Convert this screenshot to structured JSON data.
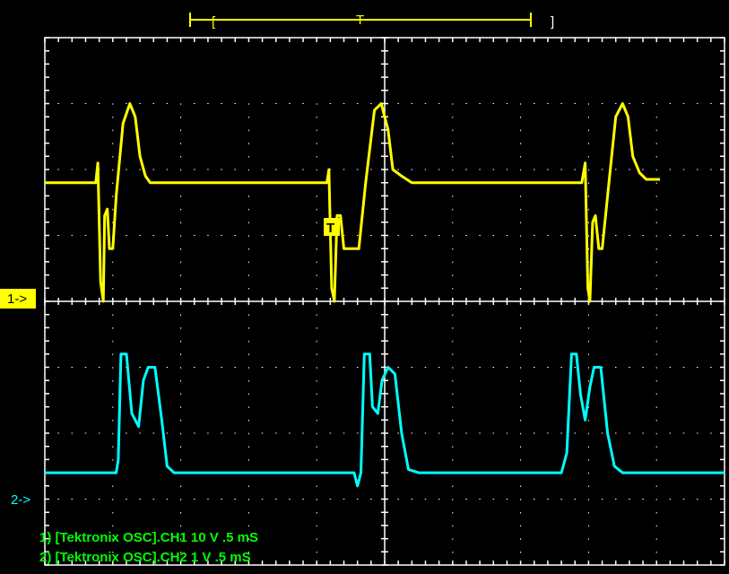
{
  "colors": {
    "background": "#000000",
    "grid": "#ffffff",
    "ch1": "#ffff00",
    "ch2": "#00ffff",
    "readout": "#00ff00",
    "trigger_bracket": "#ffff00"
  },
  "markers": {
    "ch1_label": "1->",
    "ch2_label": "2->",
    "trigger_flag": "T",
    "trigger_bracket_label": "T"
  },
  "readouts": [
    "1) [Tektronix OSC].CH1  10  V  .5 mS",
    "2) [Tektronix OSC].CH2  1  V  .5 mS"
  ],
  "chart_data": {
    "type": "line",
    "title": "",
    "grid": true,
    "x_divisions": 10,
    "y_divisions": 8,
    "x_unit_per_div": ".5 mS",
    "series": [
      {
        "name": "CH1",
        "volts_per_div": "10 V",
        "points_div": [
          [
            0,
            5.8
          ],
          [
            0.75,
            5.8
          ],
          [
            0.78,
            6.1
          ],
          [
            0.82,
            4.3
          ],
          [
            0.86,
            4.0
          ],
          [
            0.88,
            5.3
          ],
          [
            0.92,
            5.4
          ],
          [
            0.95,
            4.8
          ],
          [
            1.0,
            4.8
          ],
          [
            1.05,
            5.6
          ],
          [
            1.15,
            6.7
          ],
          [
            1.25,
            7.0
          ],
          [
            1.33,
            6.8
          ],
          [
            1.4,
            6.2
          ],
          [
            1.48,
            5.9
          ],
          [
            1.55,
            5.8
          ],
          [
            4.15,
            5.8
          ],
          [
            4.18,
            6.0
          ],
          [
            4.22,
            4.2
          ],
          [
            4.26,
            4.0
          ],
          [
            4.3,
            5.3
          ],
          [
            4.35,
            5.3
          ],
          [
            4.4,
            4.8
          ],
          [
            4.62,
            4.8
          ],
          [
            4.72,
            5.8
          ],
          [
            4.85,
            6.9
          ],
          [
            4.95,
            7.0
          ],
          [
            5.05,
            6.6
          ],
          [
            5.12,
            6.0
          ],
          [
            5.25,
            5.9
          ],
          [
            5.4,
            5.8
          ],
          [
            7.9,
            5.8
          ],
          [
            7.95,
            6.1
          ],
          [
            7.99,
            4.2
          ],
          [
            8.02,
            4.0
          ],
          [
            8.06,
            5.2
          ],
          [
            8.1,
            5.3
          ],
          [
            8.15,
            4.8
          ],
          [
            8.2,
            4.8
          ],
          [
            8.3,
            5.8
          ],
          [
            8.4,
            6.8
          ],
          [
            8.5,
            7.0
          ],
          [
            8.58,
            6.8
          ],
          [
            8.65,
            6.2
          ],
          [
            8.75,
            5.95
          ],
          [
            8.85,
            5.85
          ],
          [
            9.05,
            5.85
          ]
        ]
      },
      {
        "name": "CH2",
        "volts_per_div": "1 V",
        "points_div": [
          [
            0,
            1.4
          ],
          [
            1.05,
            1.4
          ],
          [
            1.08,
            1.6
          ],
          [
            1.12,
            3.2
          ],
          [
            1.2,
            3.2
          ],
          [
            1.28,
            2.3
          ],
          [
            1.38,
            2.1
          ],
          [
            1.45,
            2.8
          ],
          [
            1.52,
            3.0
          ],
          [
            1.62,
            3.0
          ],
          [
            1.72,
            2.2
          ],
          [
            1.8,
            1.5
          ],
          [
            1.9,
            1.4
          ],
          [
            4.55,
            1.4
          ],
          [
            4.6,
            1.2
          ],
          [
            4.65,
            1.4
          ],
          [
            4.7,
            3.2
          ],
          [
            4.78,
            3.2
          ],
          [
            4.82,
            2.4
          ],
          [
            4.9,
            2.3
          ],
          [
            4.96,
            2.8
          ],
          [
            5.05,
            3.0
          ],
          [
            5.15,
            2.9
          ],
          [
            5.25,
            2.0
          ],
          [
            5.35,
            1.45
          ],
          [
            5.5,
            1.4
          ],
          [
            7.6,
            1.4
          ],
          [
            7.68,
            1.7
          ],
          [
            7.75,
            3.2
          ],
          [
            7.82,
            3.2
          ],
          [
            7.88,
            2.6
          ],
          [
            7.95,
            2.2
          ],
          [
            8.02,
            2.7
          ],
          [
            8.08,
            3.0
          ],
          [
            8.18,
            3.0
          ],
          [
            8.28,
            2.0
          ],
          [
            8.38,
            1.5
          ],
          [
            8.5,
            1.4
          ],
          [
            10,
            1.4
          ]
        ]
      }
    ]
  }
}
